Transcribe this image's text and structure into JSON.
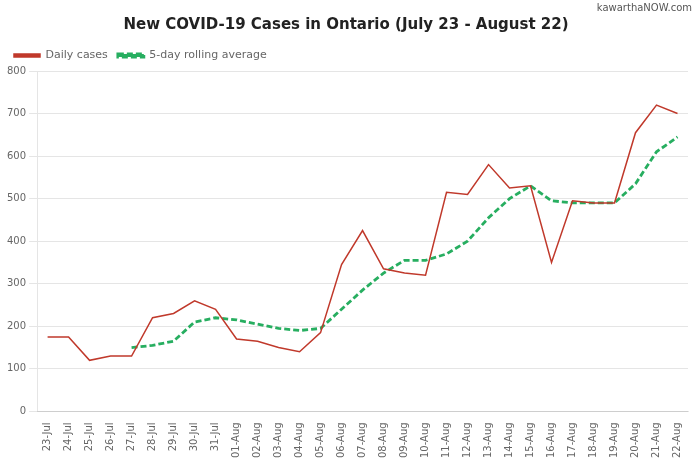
{
  "chart_data": {
    "type": "line",
    "title": "New COVID-19 Cases in Ontario (July 23 - August 22)",
    "annotations": [
      "kawarthaNOW.com"
    ],
    "categories": [
      "23-Jul",
      "24-Jul",
      "25-Jul",
      "26-Jul",
      "27-Jul",
      "28-Jul",
      "29-Jul",
      "30-Jul",
      "31-Jul",
      "01-Aug",
      "02-Aug",
      "03-Aug",
      "04-Aug",
      "05-Aug",
      "06-Aug",
      "07-Aug",
      "08-Aug",
      "09-Aug",
      "10-Aug",
      "11-Aug",
      "12-Aug",
      "13-Aug",
      "14-Aug",
      "15-Aug",
      "16-Aug",
      "17-Aug",
      "18-Aug",
      "19-Aug",
      "20-Aug",
      "21-Aug",
      "22-Aug"
    ],
    "series": [
      {
        "name": "Daily cases",
        "color": "#c0392b",
        "line_style": "solid",
        "values": [
          175,
          175,
          120,
          130,
          130,
          220,
          230,
          260,
          240,
          170,
          165,
          150,
          140,
          185,
          345,
          425,
          335,
          325,
          320,
          515,
          510,
          580,
          525,
          530,
          350,
          495,
          490,
          490,
          655,
          720,
          700
        ]
      },
      {
        "name": "5-day rolling average",
        "color": "#27ae60",
        "line_style": "dashed",
        "values": [
          null,
          null,
          null,
          null,
          150,
          155,
          165,
          210,
          220,
          215,
          205,
          195,
          190,
          195,
          240,
          285,
          325,
          355,
          355,
          370,
          400,
          455,
          500,
          530,
          495,
          490,
          490,
          490,
          535,
          610,
          645
        ]
      }
    ],
    "ylim": [
      0,
      800
    ],
    "yticks": [
      0,
      100,
      200,
      300,
      400,
      500,
      600,
      700,
      800
    ],
    "grid": "y",
    "legend": "upper left"
  }
}
